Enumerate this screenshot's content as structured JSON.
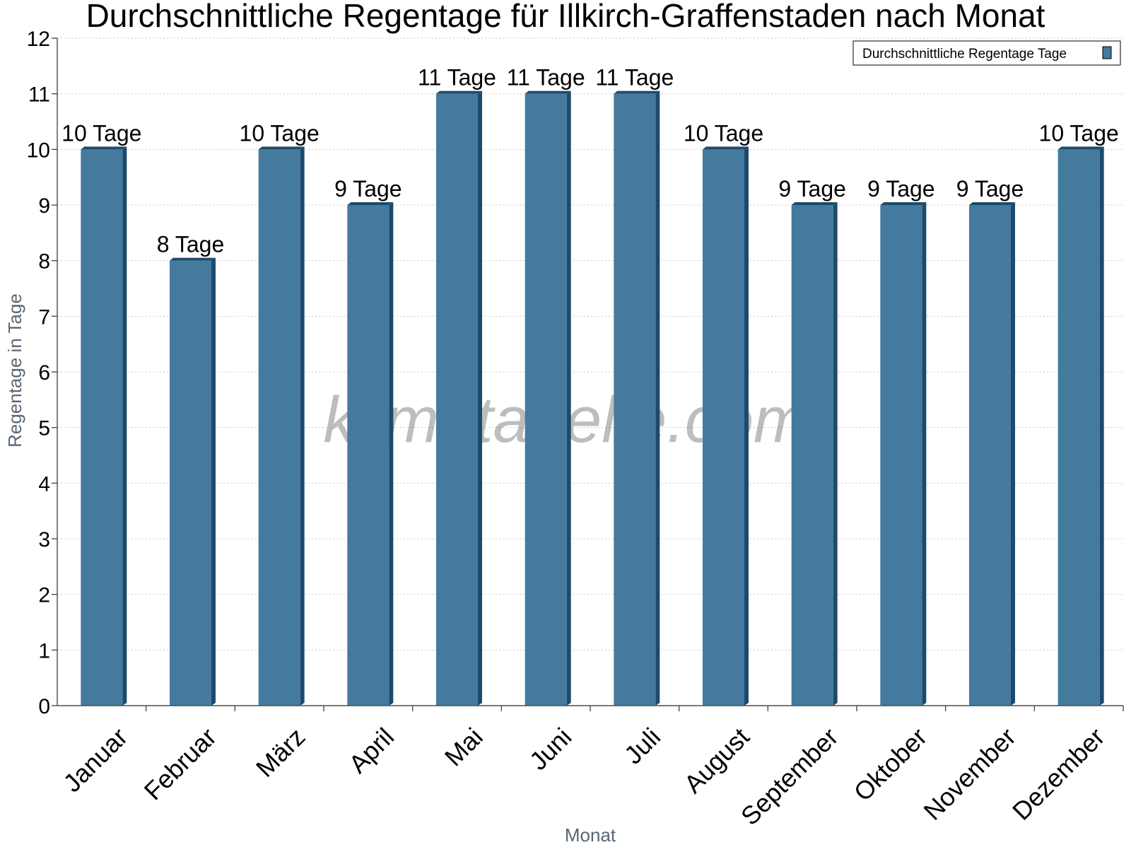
{
  "chart_data": {
    "type": "bar",
    "title": "Durchschnittliche Regentage für Illkirch-Graffenstaden nach Monat",
    "xlabel": "Monat",
    "ylabel": "Regentage in Tage",
    "ylim": [
      0,
      12
    ],
    "yticks": [
      "0",
      "1",
      "2",
      "3",
      "4",
      "5",
      "6",
      "7",
      "8",
      "9",
      "10",
      "11",
      "12"
    ],
    "grid": true,
    "legend_position": "top-right",
    "categories": [
      "Januar",
      "Februar",
      "März",
      "April",
      "Mai",
      "Juni",
      "Juli",
      "August",
      "September",
      "Oktober",
      "November",
      "Dezember"
    ],
    "series": [
      {
        "name": "Durchschnittliche Regentage Tage",
        "values": [
          10,
          8,
          10,
          9,
          11,
          11,
          11,
          10,
          9,
          9,
          9,
          10
        ],
        "labels": [
          "10 Tage",
          "8 Tage",
          "10 Tage",
          "9 Tage",
          "11 Tage",
          "11 Tage",
          "11 Tage",
          "10 Tage",
          "9 Tage",
          "9 Tage",
          "9 Tage",
          "10 Tage"
        ],
        "color": "#447a9e",
        "side_color": "#1d4a6b"
      }
    ],
    "watermark": "klimatabelle.com"
  }
}
